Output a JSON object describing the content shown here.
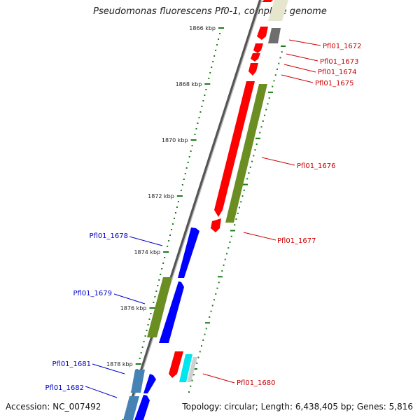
{
  "title": "Pseudomonas fluorescens Pf0-1, complete genome",
  "accession": "Accession: NC_007492",
  "topology": "Topology: circular; Length: 6,438,405 bp; Genes: 5,816",
  "colors": {
    "red": "#ff0000",
    "olive": "#6b8e23",
    "blue": "#0000ff",
    "steel": "#4682b4",
    "gray": "#6e6e6e",
    "cyan": "#00e5ee",
    "pale": "#e6e6cf",
    "tick": "#1a7a1a",
    "forward_label": "#cc0000",
    "reverse_label": "#0000cc"
  },
  "ticks": [
    "1866 kbp",
    "1868 kbp",
    "1870 kbp",
    "1872 kbp",
    "1874 kbp",
    "1876 kbp",
    "1878 kbp"
  ],
  "forward_labels": [
    "Pfl01_1672",
    "Pfl01_1673",
    "Pfl01_1674",
    "Pfl01_1675",
    "Pfl01_1676",
    "Pfl01_1677",
    "Pfl01_1680"
  ],
  "reverse_labels": [
    "Pfl01_1678",
    "Pfl01_1679",
    "Pfl01_1681",
    "Pfl01_1682"
  ]
}
